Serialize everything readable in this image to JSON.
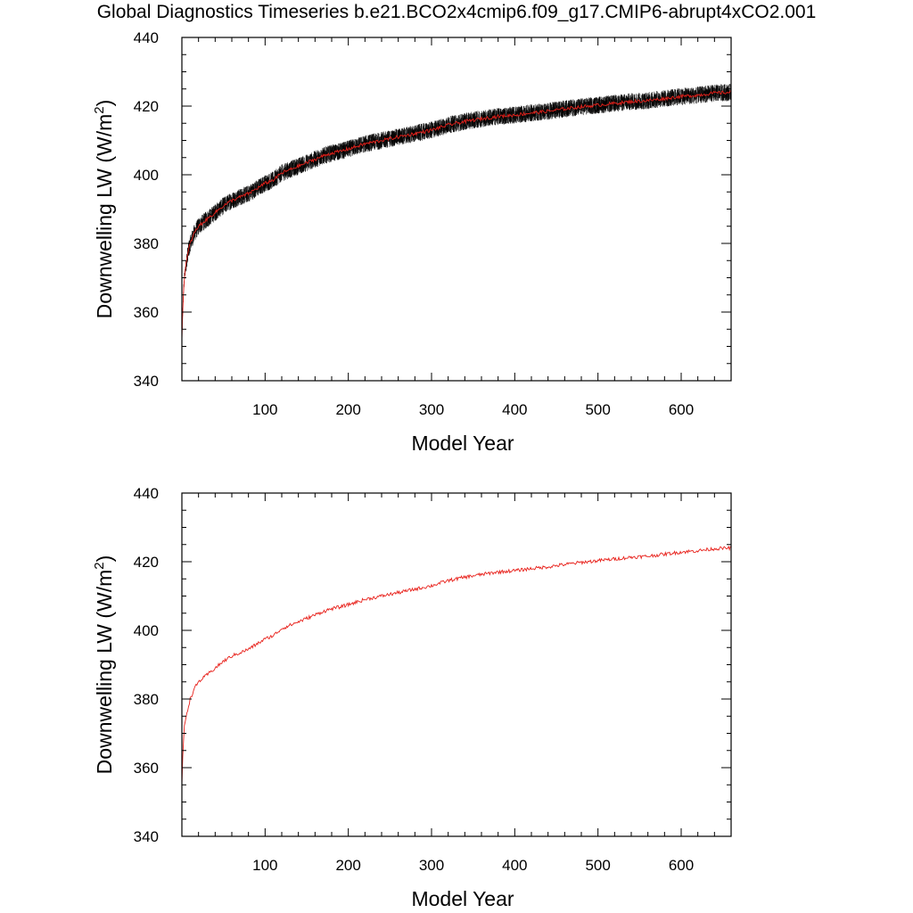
{
  "title": "Global Diagnostics Timeseries b.e21.BCO2x4cmip6.f09_g17.CMIP6-abrupt4xCO2.001",
  "colors": {
    "annual_mean": "#e8211b",
    "monthly": "#000000"
  },
  "chart_data": [
    {
      "type": "line",
      "xlabel": "Model Year",
      "ylabel_main": "Downwelling LW (W/m",
      "ylabel_sup": "2",
      "ylabel_close": ")",
      "xlim": [
        0,
        660
      ],
      "ylim": [
        340,
        440
      ],
      "xticks": [
        100,
        200,
        300,
        400,
        500,
        600
      ],
      "yticks": [
        340,
        360,
        380,
        400,
        420,
        440
      ],
      "grid": false,
      "legend": "none",
      "series": [
        {
          "style": "monthly-black-band",
          "spread": 2.5,
          "x": [
            0,
            1,
            2,
            3,
            5,
            8,
            10,
            15,
            20,
            30,
            40,
            50,
            60,
            70,
            80,
            90,
            100,
            110,
            120,
            130,
            140,
            150,
            160,
            170,
            180,
            190,
            200,
            220,
            240,
            260,
            280,
            300,
            320,
            340,
            360,
            380,
            400,
            420,
            440,
            460,
            480,
            500,
            520,
            540,
            560,
            580,
            600,
            620,
            640,
            660
          ],
          "values": [
            352,
            360,
            366,
            370,
            374,
            378,
            380,
            383,
            385,
            387,
            389,
            391,
            392.5,
            393.5,
            394.5,
            396,
            397.5,
            398.5,
            400.5,
            401.5,
            402.5,
            403.5,
            404.5,
            405.5,
            406.3,
            406.8,
            407.5,
            409,
            410,
            411,
            412,
            413,
            414.5,
            415.5,
            416.3,
            417,
            417.4,
            418,
            418.5,
            419.2,
            419.8,
            420.3,
            420.8,
            421.3,
            421.6,
            422.2,
            422.8,
            423.2,
            423.8,
            424
          ]
        },
        {
          "style": "annual-mean-red",
          "x": [
            0,
            1,
            2,
            3,
            5,
            8,
            10,
            15,
            20,
            30,
            40,
            50,
            60,
            70,
            80,
            90,
            100,
            110,
            120,
            130,
            140,
            150,
            160,
            170,
            180,
            190,
            200,
            220,
            240,
            260,
            280,
            300,
            320,
            340,
            360,
            380,
            400,
            420,
            440,
            460,
            480,
            500,
            520,
            540,
            560,
            580,
            600,
            620,
            640,
            660
          ],
          "values": [
            352,
            360,
            366,
            370,
            374,
            378,
            380,
            383,
            385,
            387,
            389,
            391,
            392.5,
            393.5,
            394.5,
            396,
            397.5,
            398.5,
            400.5,
            401.5,
            402.5,
            403.5,
            404.5,
            405.5,
            406.3,
            406.8,
            407.5,
            409,
            410,
            411,
            412,
            413,
            414.5,
            415.5,
            416.3,
            417,
            417.4,
            418,
            418.5,
            419.2,
            419.8,
            420.3,
            420.8,
            421.3,
            421.6,
            422.2,
            422.8,
            423.2,
            423.8,
            424
          ]
        }
      ]
    },
    {
      "type": "line",
      "xlabel": "Model Year",
      "ylabel_main": "Downwelling LW (W/m",
      "ylabel_sup": "2",
      "ylabel_close": ")",
      "xlim": [
        0,
        660
      ],
      "ylim": [
        340,
        440
      ],
      "xticks": [
        100,
        200,
        300,
        400,
        500,
        600
      ],
      "yticks": [
        340,
        360,
        380,
        400,
        420,
        440
      ],
      "grid": false,
      "legend": "none",
      "series": [
        {
          "style": "annual-mean-red",
          "x": [
            0,
            1,
            2,
            3,
            5,
            8,
            10,
            15,
            20,
            30,
            40,
            50,
            60,
            70,
            80,
            90,
            100,
            110,
            120,
            130,
            140,
            150,
            160,
            170,
            180,
            190,
            200,
            220,
            240,
            260,
            280,
            300,
            320,
            340,
            360,
            380,
            400,
            420,
            440,
            460,
            480,
            500,
            520,
            540,
            560,
            580,
            600,
            620,
            640,
            660
          ],
          "values": [
            355,
            363,
            368,
            372,
            375,
            378,
            380,
            383,
            385,
            387,
            389,
            391,
            392.5,
            393.5,
            394.5,
            396,
            397.5,
            398.5,
            400.5,
            401.5,
            402.5,
            403.5,
            404.5,
            405.5,
            406.3,
            406.8,
            407.5,
            409,
            410,
            411,
            412,
            413,
            414.5,
            415.5,
            416.3,
            417,
            417.4,
            418,
            418.5,
            419.2,
            419.8,
            420.3,
            420.8,
            421.3,
            421.6,
            422.2,
            422.8,
            423.2,
            423.8,
            424
          ]
        }
      ]
    }
  ]
}
